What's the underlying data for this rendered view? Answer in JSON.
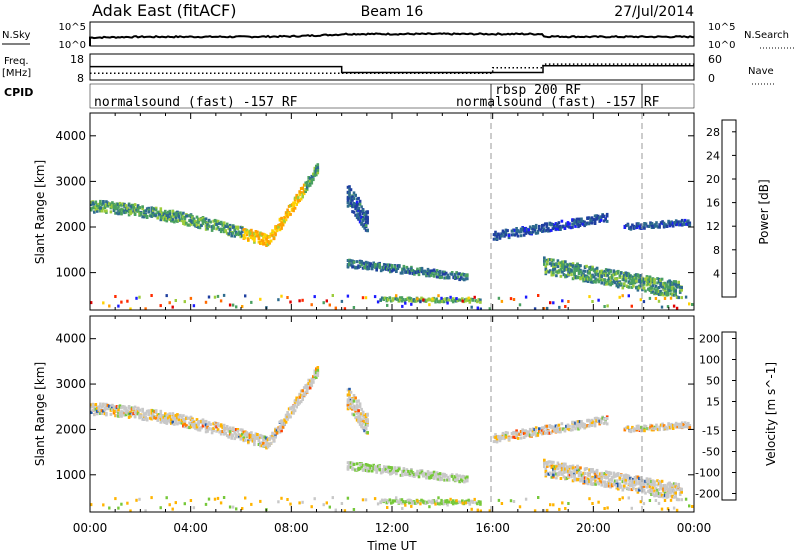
{
  "header": {
    "title": "Adak East (fitACF)",
    "beam": "Beam 16",
    "date": "27/Jul/2014"
  },
  "colors": {
    "power_scale": [
      "#1a1aff",
      "#1f3fa0",
      "#2e6b8e",
      "#4aa060",
      "#9ccc3c",
      "#ffd200",
      "#ffa000",
      "#ff6a00",
      "#ff2a00",
      "#e00000"
    ],
    "velocity_scale": [
      "#1428b4",
      "#2058a8",
      "#2a8a5a",
      "#76c83a",
      "#c8c8c8",
      "#c8c8c8",
      "#ffb400",
      "#ff8000",
      "#ff4000",
      "#e00000"
    ]
  },
  "chart_data": [
    {
      "type": "line",
      "panel": "noise",
      "labels": {
        "left": "N.Sky",
        "right": "N.Search"
      },
      "left_ticks": [
        "10^5",
        "10^0"
      ],
      "right_ticks": [
        "10^5",
        "10^0"
      ],
      "x": [
        "00:00",
        "02:00",
        "04:00",
        "06:00",
        "08:00",
        "10:00",
        "12:00",
        "14:00",
        "16:00",
        "18:00",
        "20:00",
        "22:00",
        "24:00"
      ],
      "series": [
        {
          "values": [
            1.6,
            1.8,
            1.8,
            1.8,
            1.9,
            2.4,
            2.6,
            2.5,
            2.4,
            1.9,
            1.8,
            1.8,
            1.8
          ]
        }
      ]
    },
    {
      "type": "line",
      "panel": "frequency",
      "labels": {
        "left": "Freq.",
        "left_unit": "[MHz]",
        "right": "Nave"
      },
      "left_ticks": [
        18,
        8
      ],
      "right_ticks": [
        60,
        0
      ],
      "ylim": [
        8,
        18
      ],
      "series": [
        {
          "values_time": [
            0,
            10,
            10,
            18,
            18,
            24
          ],
          "values": [
            13.2,
            13.2,
            10.5,
            10.5,
            13.6,
            13.6
          ]
        },
        {
          "values_time": [
            0,
            16,
            16,
            18,
            18,
            24
          ],
          "values": [
            13,
            13,
            28,
            28,
            38,
            38
          ]
        }
      ]
    },
    {
      "type": "table",
      "panel": "cpid",
      "label": "CPID",
      "segments": [
        {
          "start": 0,
          "end": 16,
          "text": "normalsound (fast) -157 RF"
        },
        {
          "start": 16,
          "end": 22,
          "text": "rbsp 200 RF"
        },
        {
          "start": 16,
          "end": 22,
          "text": "normalsound (fast) -157 RF"
        }
      ]
    },
    {
      "type": "heatmap",
      "panel": "power",
      "ylabel": "Slant Range [km]",
      "yticks": [
        1000,
        2000,
        3000,
        4000
      ],
      "ylim": [
        180,
        4500
      ],
      "xlim": [
        0,
        24
      ],
      "colorbar": {
        "label": "Power [dB]",
        "ticks": [
          4,
          8,
          12,
          16,
          20,
          24,
          28
        ],
        "range": [
          0,
          30
        ]
      },
      "bands": [
        {
          "t": [
            0,
            9
          ],
          "r_start": 2450,
          "shape": "u",
          "r_min": 1700,
          "t_min": 7.0,
          "r_end": 3300,
          "width": 250,
          "level": 0.3
        },
        {
          "t": [
            10.2,
            15
          ],
          "r_start": 1200,
          "shape": "flat",
          "r_end": 900,
          "width": 160,
          "level": 0.2
        },
        {
          "t": [
            10.2,
            11.0
          ],
          "r_start": 2700,
          "shape": "flat",
          "r_end": 2100,
          "width": 500,
          "level": 0.15
        },
        {
          "t": [
            11.5,
            15.5
          ],
          "r_start": 420,
          "shape": "flat",
          "r_end": 380,
          "width": 80,
          "level": 0.35
        },
        {
          "t": [
            16.0,
            20.5
          ],
          "r_start": 1800,
          "shape": "flat",
          "r_end": 2200,
          "width": 180,
          "level": 0.12
        },
        {
          "t": [
            18,
            23.5
          ],
          "r_start": 1150,
          "shape": "flat",
          "r_end": 600,
          "width": 350,
          "level": 0.3
        },
        {
          "t": [
            21.2,
            23.8
          ],
          "r_start": 2000,
          "shape": "flat",
          "r_end": 2100,
          "width": 120,
          "level": 0.12
        }
      ]
    },
    {
      "type": "heatmap",
      "panel": "velocity",
      "ylabel": "Slant Range [km]",
      "yticks": [
        1000,
        2000,
        3000,
        4000
      ],
      "ylim": [
        180,
        4500
      ],
      "xlim": [
        0,
        24
      ],
      "colorbar": {
        "label": "Velocity [m s^-1]",
        "ticks": [
          200,
          100,
          50,
          15,
          -15,
          -50,
          -100,
          -200
        ]
      },
      "xlabel": "Time UT",
      "xticks": [
        "00:00",
        "04:00",
        "08:00",
        "12:00",
        "16:00",
        "20:00",
        "00:00"
      ],
      "vlines_hours": [
        16,
        22
      ]
    }
  ]
}
